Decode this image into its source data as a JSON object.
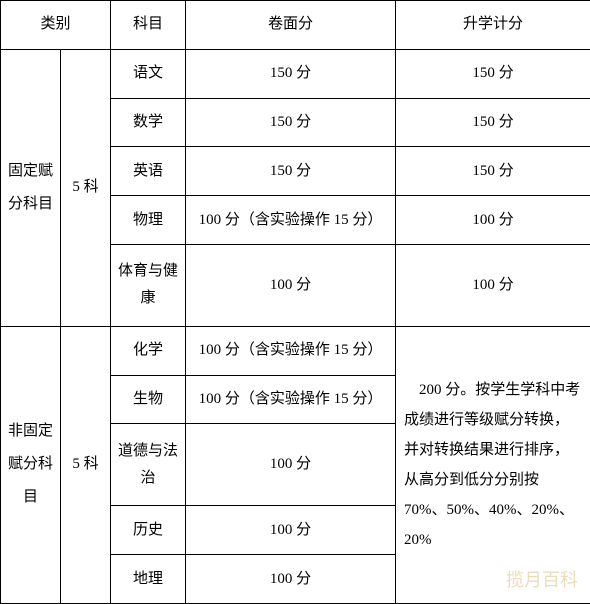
{
  "header": {
    "category": "类别",
    "subject": "科目",
    "paper_score": "卷面分",
    "admission_score": "升学计分"
  },
  "fixed_group": {
    "label": "固定赋分科目",
    "count": "5 科",
    "rows": [
      {
        "subject": "语文",
        "paper": "150 分",
        "admission": "150 分"
      },
      {
        "subject": "数学",
        "paper": "150 分",
        "admission": "150 分"
      },
      {
        "subject": "英语",
        "paper": "150 分",
        "admission": "150 分"
      },
      {
        "subject": "物理",
        "paper": "100 分（含实验操作 15 分）",
        "admission": "100 分"
      },
      {
        "subject": "体育与健康",
        "paper": "100 分",
        "admission": "100 分"
      }
    ]
  },
  "nonfixed_group": {
    "label": "非固定赋分科目",
    "count": "5 科",
    "rows": [
      {
        "subject": "化学",
        "paper": "100 分（含实验操作 15 分）"
      },
      {
        "subject": "生物",
        "paper": "100 分（含实验操作 15 分）"
      },
      {
        "subject": "道德与法治",
        "paper": "100 分"
      },
      {
        "subject": "历史",
        "paper": "100 分"
      },
      {
        "subject": "地理",
        "paper": "100 分"
      }
    ],
    "admission_merged": "　200 分。按学生学科中考成绩进行等级赋分转换，并对转换结果进行排序，从高分到低分分别按 70%、50%、40%、20%、20%"
  },
  "watermark": "揽月百科",
  "colors": {
    "border": "#000000",
    "text": "#000000",
    "background": "#ffffff",
    "watermark": "#e8d9b5"
  }
}
